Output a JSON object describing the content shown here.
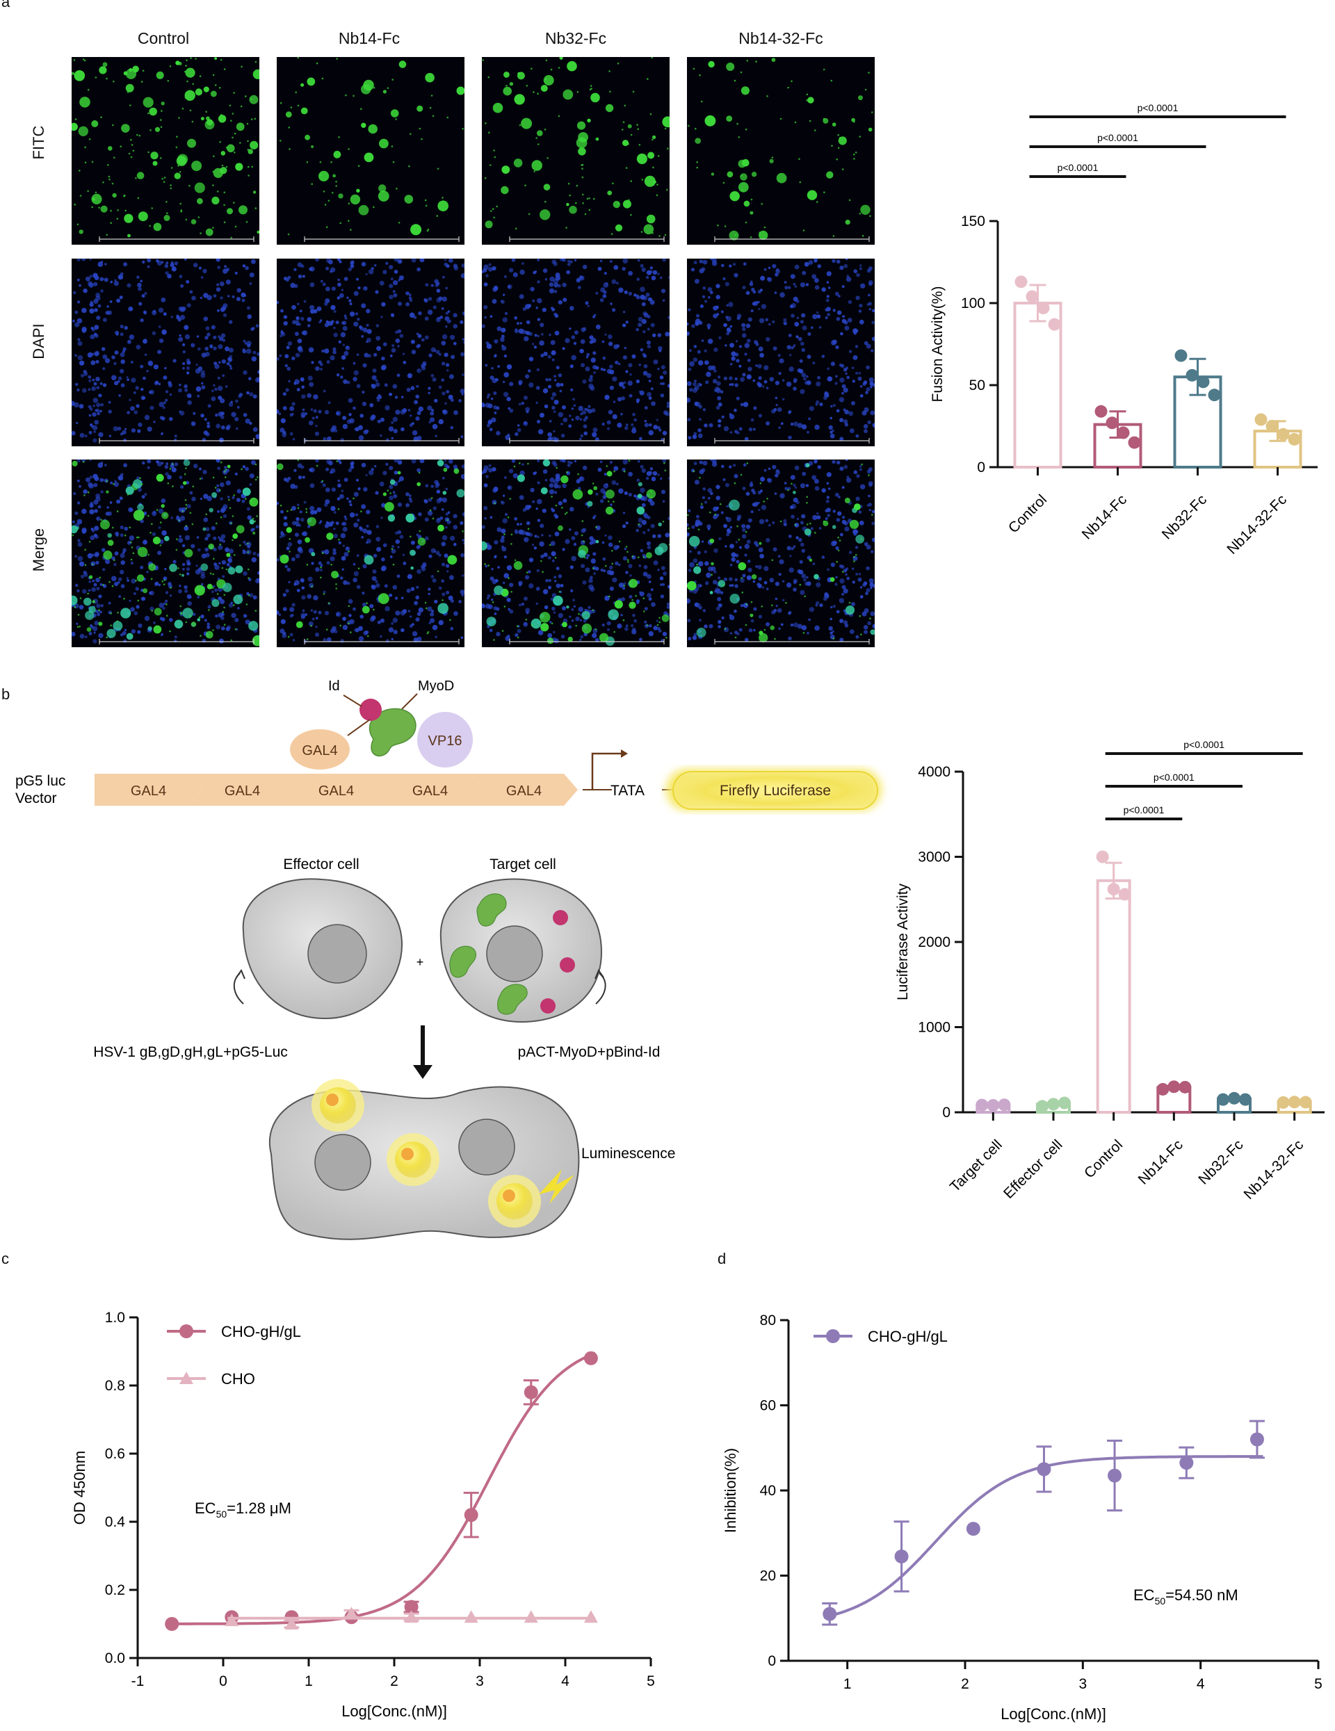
{
  "panels": {
    "a": "a",
    "b": "b",
    "c": "c",
    "d": "d"
  },
  "panel_a": {
    "columns": [
      "Control",
      "Nb14-Fc",
      "Nb32-Fc",
      "Nb14-32-Fc"
    ],
    "rows": [
      "FITC",
      "DAPI",
      "Merge"
    ],
    "channel_colors": {
      "FITC": "#3ddc3a",
      "DAPI": "#2a46c8",
      "Merge": "#34c8a0"
    }
  },
  "panel_b": {
    "vector_label_1": "pG5 luc",
    "vector_label_2": "Vector",
    "gal4_boxes": [
      "GAL4",
      "GAL4",
      "GAL4",
      "GAL4",
      "GAL4"
    ],
    "tata": "TATA",
    "luciferase": "Firefly Luciferase",
    "gal4_protein": "GAL4",
    "vp16": "VP16",
    "id_label": "Id",
    "myod_label": "MyoD",
    "effector_cell": "Effector cell",
    "target_cell": "Target cell",
    "plus": "+",
    "effector_plasmids": "HSV-1 gB,gD,gH,gL+pG5-Luc",
    "target_plasmids": "pACT-MyoD+pBind-Id",
    "luminescence": "Luminescence"
  },
  "chart_data": [
    {
      "id": "a-bar",
      "type": "bar",
      "categories": [
        "Control",
        "Nb14-Fc",
        "Nb32-Fc",
        "Nb14-32-Fc"
      ],
      "values": [
        100,
        26,
        55,
        22
      ],
      "errors": [
        11,
        8,
        11,
        6
      ],
      "points": [
        [
          113,
          104,
          97,
          87
        ],
        [
          34,
          27,
          21,
          15
        ],
        [
          68,
          56,
          52,
          44
        ],
        [
          29,
          25,
          20,
          17
        ]
      ],
      "colors": [
        "#e8bfc9",
        "#b25a78",
        "#4e7a8a",
        "#e0c483"
      ],
      "ylabel": "Fusion Activity(%)",
      "ylim": [
        0,
        150
      ],
      "yticks": [
        0,
        50,
        100,
        150
      ],
      "significance": [
        {
          "from": 0,
          "to": 1,
          "label": "p<0.0001"
        },
        {
          "from": 0,
          "to": 2,
          "label": "p<0.0001"
        },
        {
          "from": 0,
          "to": 3,
          "label": "p<0.0001"
        }
      ]
    },
    {
      "id": "b-bar",
      "type": "bar",
      "categories": [
        "Target cell",
        "Effector cell",
        "Control",
        "Nb14-Fc",
        "Nb32-Fc",
        "Nb14-32-Fc"
      ],
      "values": [
        85,
        95,
        2720,
        290,
        155,
        120
      ],
      "errors": [
        10,
        15,
        210,
        20,
        15,
        10
      ],
      "points": [
        [
          85,
          82,
          88
        ],
        [
          70,
          95,
          110
        ],
        [
          3000,
          2620,
          2560
        ],
        [
          270,
          300,
          295
        ],
        [
          150,
          165,
          150
        ],
        [
          115,
          120,
          118
        ]
      ],
      "colors": [
        "#c9a8cc",
        "#a8d2a8",
        "#e8bfc9",
        "#b25a78",
        "#4e7a8a",
        "#e0c483"
      ],
      "ylabel": "Luciferase Activity",
      "ylim": [
        0,
        4000
      ],
      "yticks": [
        0,
        1000,
        2000,
        3000,
        4000
      ],
      "significance": [
        {
          "from": 2,
          "to": 3,
          "label": "p<0.0001"
        },
        {
          "from": 2,
          "to": 4,
          "label": "p<0.0001"
        },
        {
          "from": 2,
          "to": 5,
          "label": "p<0.0001"
        }
      ]
    },
    {
      "id": "c-curve",
      "type": "scatter",
      "xlabel": "Log[Conc.(nM)]",
      "ylabel": "OD 450nm",
      "xlim": [
        -1,
        5
      ],
      "ylim": [
        0,
        1.0
      ],
      "xticks": [
        -1,
        0,
        1,
        2,
        3,
        4,
        5
      ],
      "yticks": [
        "0.0",
        "0.2",
        "0.4",
        "0.6",
        "0.8",
        "1.0"
      ],
      "annotation": "EC",
      "annotation_sub": "50",
      "annotation_rest": "=1.28 μM",
      "series": [
        {
          "name": "CHO-gH/gL",
          "marker": "circle",
          "color": "#c06a86",
          "x": [
            -0.6,
            0.1,
            0.8,
            1.5,
            2.2,
            2.9,
            3.6,
            4.3
          ],
          "y": [
            0.1,
            0.12,
            0.12,
            0.12,
            0.15,
            0.42,
            0.78,
            0.88
          ],
          "err": [
            0.0,
            0.0,
            0.0,
            0.0,
            0.015,
            0.065,
            0.035,
            0.0
          ],
          "fit": {
            "bottom": 0.1,
            "top": 0.94,
            "logec50": 3.1,
            "hill": 1.0
          }
        },
        {
          "name": "CHO",
          "marker": "triangle",
          "color": "#e3b3c0",
          "x": [
            0.1,
            0.8,
            1.5,
            2.2,
            2.9,
            3.6,
            4.3
          ],
          "y": [
            0.11,
            0.1,
            0.13,
            0.12,
            0.12,
            0.12,
            0.12
          ],
          "err": [
            0.0,
            0.01,
            0.01,
            0.01,
            0.0,
            0.0,
            0.0
          ],
          "fit": {
            "flat": 0.117
          }
        }
      ]
    },
    {
      "id": "d-curve",
      "type": "scatter",
      "xlabel": "Log[Conc.(nM)]",
      "ylabel": "Inhibition(%)",
      "xlim": [
        0.5,
        5
      ],
      "ylim": [
        0,
        80
      ],
      "xticks": [
        1,
        2,
        3,
        4,
        5
      ],
      "yticks": [
        0,
        20,
        40,
        60,
        80
      ],
      "annotation": "EC",
      "annotation_sub": "50",
      "annotation_rest": "=54.50 nM",
      "series": [
        {
          "name": "CHO-gH/gL",
          "marker": "circle",
          "color": "#8e7bb6",
          "x": [
            0.85,
            1.46,
            2.07,
            2.67,
            3.27,
            3.88,
            4.48
          ],
          "y": [
            11,
            24.5,
            31,
            45,
            43.5,
            46.5,
            52
          ],
          "err": [
            2.5,
            8.2,
            0.0,
            5.3,
            8.2,
            3.6,
            4.3
          ],
          "fit": {
            "bottom": 8,
            "top": 48,
            "logec50": 1.75,
            "hill": 1.3
          }
        }
      ]
    }
  ]
}
